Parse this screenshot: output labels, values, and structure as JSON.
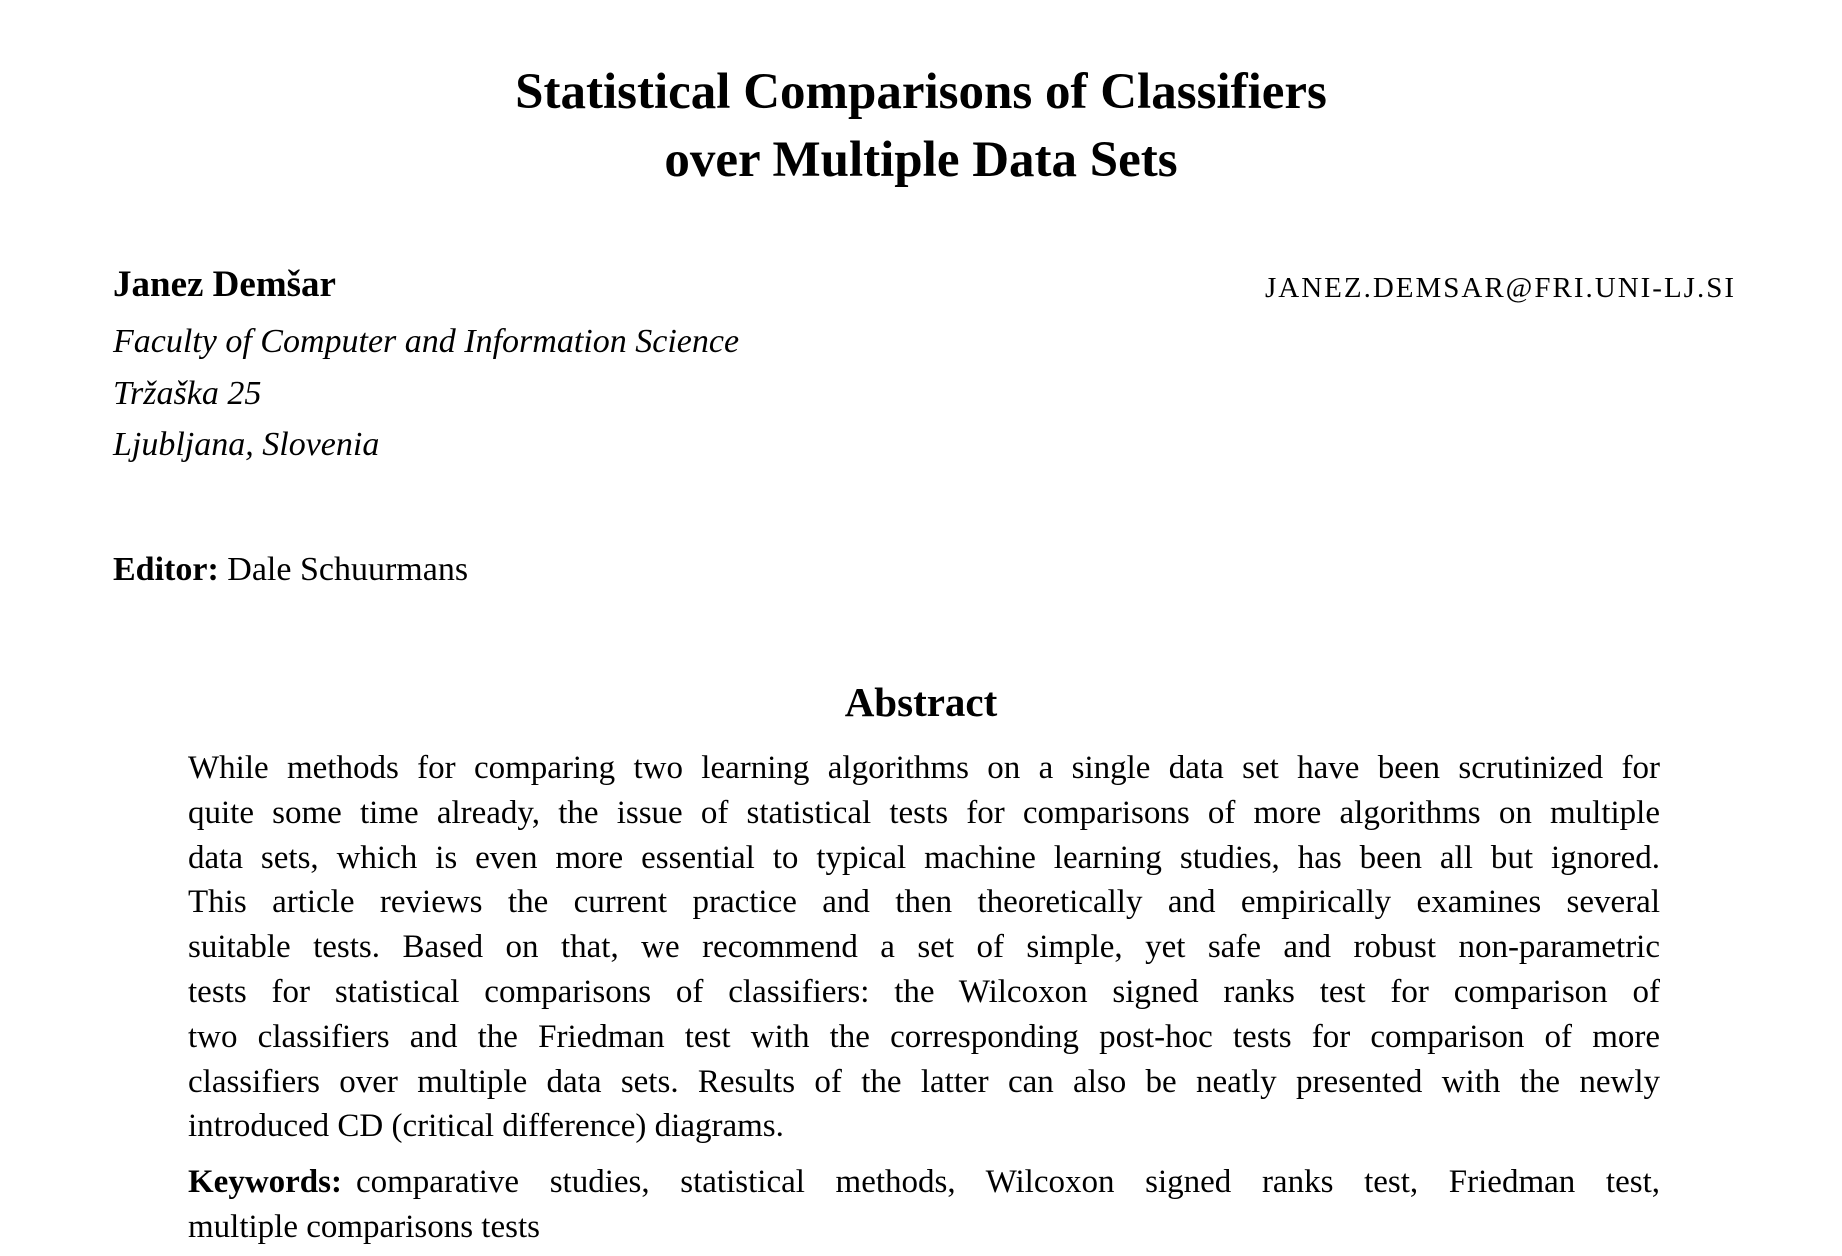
{
  "paper": {
    "title_lines": [
      "Statistical Comparisons of Classifiers",
      "over Multiple Data Sets"
    ],
    "author": {
      "name": "Janez Demšar",
      "email": "JANEZ.DEMSAR@FRI.UNI-LJ.SI",
      "affiliation_lines": [
        "Faculty of Computer and Information Science",
        "Tržaška 25",
        "Ljubljana, Slovenia"
      ]
    },
    "editor": {
      "label": "Editor:",
      "name": "Dale Schuurmans"
    },
    "abstract": {
      "heading": "Abstract",
      "lines": [
        "While methods for comparing two learning algorithms on a single data set have been scrutinized for",
        "quite some time already, the issue of statistical tests for comparisons of more algorithms on multiple",
        "data sets, which is even more essential to typical machine learning studies, has been all but ignored.",
        "This article reviews the current practice and then theoretically and empirically examines several",
        "suitable tests. Based on that, we recommend a set of simple, yet safe and robust non-parametric",
        "tests for statistical comparisons of classifiers: the Wilcoxon signed ranks test for comparison of",
        "two classifiers and the Friedman test with the corresponding post-hoc tests for comparison of more",
        "classifiers over multiple data sets. Results of the latter can also be neatly presented with the newly",
        "introduced CD (critical difference) diagrams."
      ]
    },
    "keywords": {
      "label": "Keywords:",
      "line1": "comparative studies, statistical methods, Wilcoxon signed ranks test, Friedman test,",
      "line2": "multiple comparisons tests"
    }
  }
}
